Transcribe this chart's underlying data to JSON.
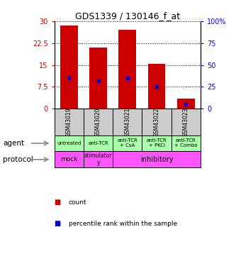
{
  "title": "GDS1339 / 130146_f_at",
  "samples": [
    "GSM43019",
    "GSM43020",
    "GSM43021",
    "GSM43022",
    "GSM43023"
  ],
  "counts": [
    28.5,
    21.0,
    27.0,
    15.5,
    3.5
  ],
  "percentile_ranks": [
    10.5,
    9.5,
    10.5,
    7.5,
    1.5
  ],
  "left_ylim": [
    0,
    30
  ],
  "right_ylim": [
    0,
    100
  ],
  "left_yticks": [
    0,
    7.5,
    15,
    22.5,
    30
  ],
  "right_yticks": [
    0,
    25,
    50,
    75,
    100
  ],
  "left_yticklabels": [
    "0",
    "7.5",
    "15",
    "22.5",
    "30"
  ],
  "right_yticklabels": [
    "0",
    "25",
    "50",
    "75",
    "100%"
  ],
  "bar_color": "#cc0000",
  "percentile_color": "#0000cc",
  "agent_labels": [
    "untreated",
    "anti-TCR",
    "anti-TCR\n+ CsA",
    "anti-TCR\n+ PKCi",
    "anti-TCR\n+ Combo"
  ],
  "sample_bg_color": "#cccccc",
  "agent_bg": "#aaffaa",
  "protocol_color": "#ff55ff",
  "legend_count_color": "#cc0000",
  "legend_pct_color": "#0000cc"
}
